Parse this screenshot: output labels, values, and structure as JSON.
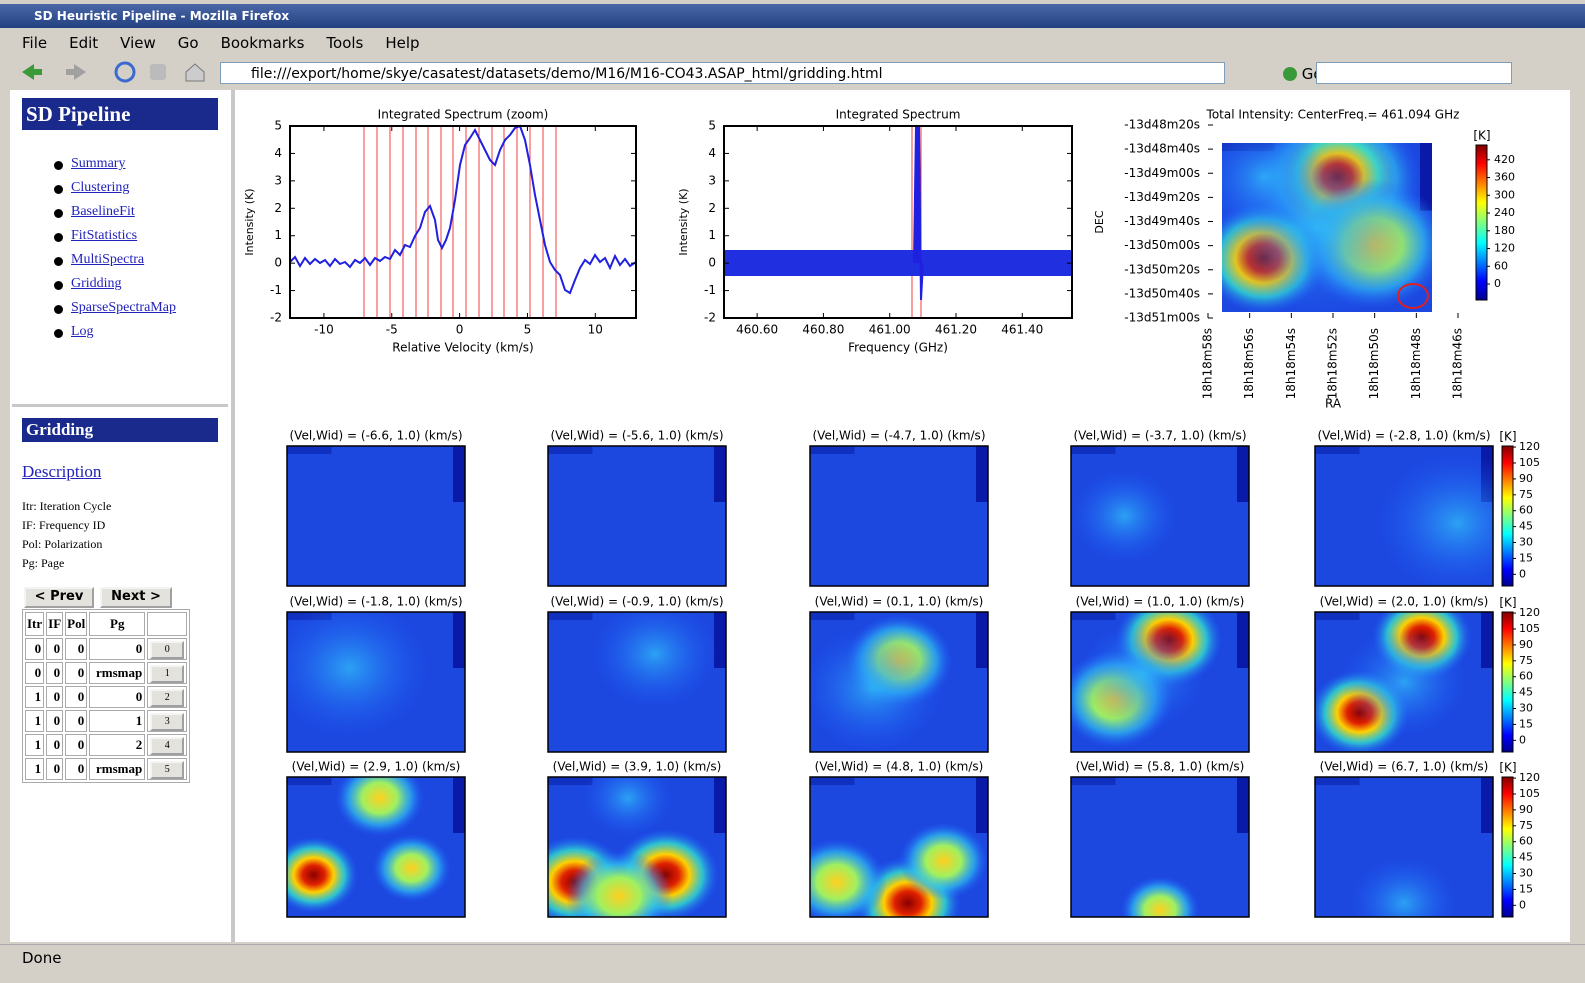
{
  "window": {
    "title": "SD Heuristic Pipeline - Mozilla Firefox"
  },
  "menu": [
    "File",
    "Edit",
    "View",
    "Go",
    "Bookmarks",
    "Tools",
    "Help"
  ],
  "toolbar": {
    "url": "file:///export/home/skye/casatest/datasets/demo/M16/M16-CO43.ASAP_html/gridding.html",
    "go": "Go"
  },
  "sidebar": {
    "title": "SD Pipeline",
    "links": [
      "Summary",
      "Clustering",
      "BaselineFit",
      "FitStatistics",
      "MultiSpectra",
      "Gridding",
      "SparseSpectraMap",
      "Log"
    ],
    "section": "Gridding",
    "description": "Description",
    "legend": [
      "Itr: Iteration Cycle",
      "IF: Frequency ID",
      "Pol: Polarization",
      "Pg: Page"
    ],
    "prev": "< Prev",
    "next": "Next >",
    "table": {
      "header": [
        "Itr",
        "IF",
        "Pol",
        "Pg"
      ],
      "rows": [
        [
          0,
          0,
          0,
          0,
          0
        ],
        [
          0,
          0,
          0,
          "rmsmap",
          1
        ],
        [
          1,
          0,
          0,
          0,
          2
        ],
        [
          1,
          0,
          0,
          1,
          3
        ],
        [
          1,
          0,
          0,
          2,
          4
        ],
        [
          1,
          0,
          0,
          "rmsmap",
          5
        ]
      ]
    }
  },
  "plots": {
    "spectrum_zoom": {
      "title": "Integrated Spectrum (zoom)",
      "xlabel": "Relative Velocity (km/s)",
      "ylabel": "Intensity (K)",
      "xlim": [
        -12.5,
        13
      ],
      "xticks": [
        -10,
        -5,
        0,
        5,
        10
      ],
      "ylim": [
        -2,
        5
      ],
      "yticks": [
        -2,
        -1,
        0,
        1,
        2,
        3,
        4,
        5
      ]
    },
    "spectrum": {
      "title": "Integrated Spectrum",
      "xlabel": "Frequency (GHz)",
      "ylabel": "Intensity (K)",
      "xlim": [
        460.5,
        461.55
      ],
      "xticks": [
        {
          "value": 460.6,
          "label": "460.60"
        },
        {
          "value": 460.8,
          "label": "460.80"
        },
        {
          "value": 461.0,
          "label": "461.00"
        },
        {
          "value": 461.2,
          "label": "461.20"
        },
        {
          "value": 461.4,
          "label": "461.40"
        }
      ],
      "ylim": [
        -2,
        5
      ],
      "yticks": [
        -2,
        -1,
        0,
        1,
        2,
        3,
        4,
        5
      ]
    },
    "total_intensity": {
      "title": "Total Intensity: CenterFreq.= 461.094 GHz",
      "xlabel": "RA",
      "ylabel": "DEC",
      "xlim": [
        65938,
        65926
      ],
      "xticks": [
        {
          "value": 65938,
          "label": "18h18m58s"
        },
        {
          "value": 65936,
          "label": "18h18m56s"
        },
        {
          "value": 65934,
          "label": "18h18m54s"
        },
        {
          "value": 65932,
          "label": "18h18m52s"
        },
        {
          "value": 65930,
          "label": "18h18m50s"
        },
        {
          "value": 65928,
          "label": "18h18m48s"
        },
        {
          "value": 65926,
          "label": "18h18m46s"
        }
      ],
      "ylim": [
        -49860,
        -49700
      ],
      "yticks": [
        {
          "value": -49700,
          "label": "-13d48m20s"
        },
        {
          "value": -49720,
          "label": "-13d48m40s"
        },
        {
          "value": -49740,
          "label": "-13d49m00s"
        },
        {
          "value": -49760,
          "label": "-13d49m20s"
        },
        {
          "value": -49780,
          "label": "-13d49m40s"
        },
        {
          "value": -49800,
          "label": "-13d50m00s"
        },
        {
          "value": -49820,
          "label": "-13d50m20s"
        },
        {
          "value": -49840,
          "label": "-13d50m40s"
        },
        {
          "value": -49860,
          "label": "-13d51m00s"
        }
      ],
      "colorbar_label": "[K]",
      "clim": [
        -54,
        470
      ],
      "colorbar_ticks": [
        0,
        60,
        120,
        180,
        240,
        300,
        360,
        420
      ]
    },
    "channel_maps": {
      "titles": [
        "(Vel,Wid) = (-6.6, 1.0) (km/s)",
        "(Vel,Wid) = (-5.6, 1.0) (km/s)",
        "(Vel,Wid) = (-4.7, 1.0) (km/s)",
        "(Vel,Wid) = (-3.7, 1.0) (km/s)",
        "(Vel,Wid) = (-2.8, 1.0) (km/s)",
        "(Vel,Wid) = (-1.8, 1.0) (km/s)",
        "(Vel,Wid) = (-0.9, 1.0) (km/s)",
        "(Vel,Wid) = (0.1, 1.0) (km/s)",
        "(Vel,Wid) = (1.0, 1.0) (km/s)",
        "(Vel,Wid) = (2.0, 1.0) (km/s)",
        "(Vel,Wid) = (2.9, 1.0) (km/s)",
        "(Vel,Wid) = (3.9, 1.0) (km/s)",
        "(Vel,Wid) = (4.8, 1.0) (km/s)",
        "(Vel,Wid) = (5.8, 1.0) (km/s)",
        "(Vel,Wid) = (6.7, 1.0) (km/s)"
      ],
      "colorbar_label": "[K]",
      "clim": [
        -11,
        121
      ],
      "colorbar_ticks": [
        0,
        15,
        30,
        45,
        60,
        75,
        90,
        105,
        120
      ]
    }
  },
  "status": "Done"
}
